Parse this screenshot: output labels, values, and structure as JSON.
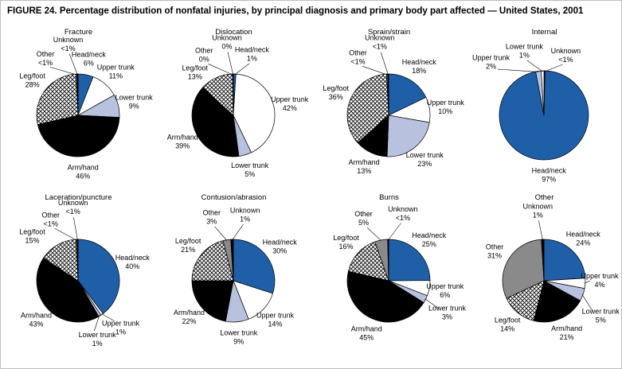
{
  "figure_title": "FIGURE 24. Percentage distribution of nonfatal injuries, by principal diagnosis and primary body part affected — United States, 2001",
  "palette": {
    "head": "#1F5FA8",
    "upper": "#FFFFFF",
    "lower": "#B8C2DE",
    "arm": "#000000",
    "leg": "crosshatch",
    "other": "#8A8A8A",
    "unknown": "#000000"
  },
  "chart_data": [
    {
      "type": "pie",
      "title": "Fracture",
      "slices": [
        {
          "label": "Head/neck",
          "display": "6%",
          "value": 6,
          "fill": "head"
        },
        {
          "label": "Upper trunk",
          "display": "11%",
          "value": 11,
          "fill": "upper"
        },
        {
          "label": "Lower trunk",
          "display": "9%",
          "value": 9,
          "fill": "lower"
        },
        {
          "label": "Arm/hand",
          "display": "46%",
          "value": 46,
          "fill": "arm"
        },
        {
          "label": "Leg/foot",
          "display": "28%",
          "value": 28,
          "fill": "leg"
        },
        {
          "label": "Other",
          "display": "<1%",
          "value": 0.4,
          "fill": "other",
          "la": 330,
          "lr": 82
        },
        {
          "label": "Unknown",
          "display": "<1%",
          "value": 0.4,
          "fill": "unknown",
          "la": 352,
          "lr": 90
        }
      ]
    },
    {
      "type": "pie",
      "title": "Dislocation",
      "slices": [
        {
          "label": "Head/neck",
          "display": "1%",
          "value": 1,
          "fill": "head",
          "la": 17,
          "lr": 80
        },
        {
          "label": "Upper trunk",
          "display": "42%",
          "value": 42,
          "fill": "upper"
        },
        {
          "label": "Lower trunk",
          "display": "5%",
          "value": 5,
          "fill": "lower"
        },
        {
          "label": "Arm/hand",
          "display": "39%",
          "value": 39,
          "fill": "arm"
        },
        {
          "label": "Leg/foot",
          "display": "13%",
          "value": 13,
          "fill": "leg",
          "la": 318
        },
        {
          "label": "Other",
          "display": "0%",
          "value": 0.15,
          "fill": "other",
          "la": 334,
          "lr": 84,
          "leader": true
        },
        {
          "label": "Unknown",
          "display": "0%",
          "value": 0.15,
          "fill": "unknown",
          "la": 355,
          "lr": 92,
          "leader": true
        }
      ]
    },
    {
      "type": "pie",
      "title": "Sprain/strain",
      "slices": [
        {
          "label": "Head/neck",
          "display": "18%",
          "value": 18,
          "fill": "head"
        },
        {
          "label": "Upper trunk",
          "display": "10%",
          "value": 10,
          "fill": "upper"
        },
        {
          "label": "Lower trunk",
          "display": "23%",
          "value": 23,
          "fill": "lower"
        },
        {
          "label": "Arm/hand",
          "display": "13%",
          "value": 13,
          "fill": "arm"
        },
        {
          "label": "Leg/foot",
          "display": "36%",
          "value": 36,
          "fill": "leg"
        },
        {
          "label": "Other",
          "display": "<1%",
          "value": 0.4,
          "fill": "other",
          "la": 332,
          "lr": 82
        },
        {
          "label": "Unknown",
          "display": "<1%",
          "value": 0.4,
          "fill": "unknown",
          "la": 353,
          "lr": 92
        }
      ]
    },
    {
      "type": "pie",
      "title": "Internal",
      "r": 56,
      "slices": [
        {
          "label": "Unknown",
          "display": "<1%",
          "value": 0.4,
          "fill": "unknown",
          "la": 20,
          "lr": 80
        },
        {
          "label": "Head/neck",
          "display": "97%",
          "value": 97,
          "fill": "head"
        },
        {
          "label": "Upper trunk",
          "display": "2%",
          "value": 2,
          "fill": "lower",
          "la": 315,
          "lr": 94
        },
        {
          "label": "Lower trunk",
          "display": "1%",
          "value": 1,
          "fill": "upper",
          "la": 343,
          "lr": 84
        }
      ]
    },
    {
      "type": "pie",
      "title": "Laceration/puncture",
      "slices": [
        {
          "label": "Head/neck",
          "display": "40%",
          "value": 40,
          "fill": "head"
        },
        {
          "label": "Upper trunk",
          "display": "1%",
          "value": 1,
          "fill": "upper",
          "la": 138,
          "lr": 80
        },
        {
          "label": "Lower trunk",
          "display": "1%",
          "value": 1,
          "fill": "lower",
          "la": 162,
          "lr": 78
        },
        {
          "label": "Arm/hand",
          "display": "43%",
          "value": 43,
          "fill": "arm"
        },
        {
          "label": "Leg/foot",
          "display": "15%",
          "value": 15,
          "fill": "leg",
          "la": 314,
          "lr": 80
        },
        {
          "label": "Other",
          "display": "<1%",
          "value": 0.4,
          "fill": "other",
          "la": 336,
          "lr": 84
        },
        {
          "label": "Unknown",
          "display": "<1%",
          "value": 0.4,
          "fill": "unknown",
          "la": 356,
          "lr": 92
        }
      ]
    },
    {
      "type": "pie",
      "title": "Contusion/abrasion",
      "slices": [
        {
          "label": "Head/neck",
          "display": "30%",
          "value": 30,
          "fill": "head"
        },
        {
          "label": "Upper trunk",
          "display": "14%",
          "value": 14,
          "fill": "upper"
        },
        {
          "label": "Lower trunk",
          "display": "9%",
          "value": 9,
          "fill": "lower"
        },
        {
          "label": "Arm/hand",
          "display": "22%",
          "value": 22,
          "fill": "arm"
        },
        {
          "label": "Leg/foot",
          "display": "21%",
          "value": 21,
          "fill": "leg"
        },
        {
          "label": "Other",
          "display": "3%",
          "value": 3,
          "fill": "other",
          "la": 341,
          "lr": 84
        },
        {
          "label": "Unknown",
          "display": "1%",
          "value": 1,
          "fill": "unknown",
          "la": 10,
          "lr": 84
        }
      ]
    },
    {
      "type": "pie",
      "title": "Burns",
      "slices": [
        {
          "label": "Head/neck",
          "display": "25%",
          "value": 25,
          "fill": "head"
        },
        {
          "label": "Upper trunk",
          "display": "6%",
          "value": 6,
          "fill": "upper"
        },
        {
          "label": "Lower trunk",
          "display": "3%",
          "value": 3,
          "fill": "lower",
          "la": 119,
          "lr": 84
        },
        {
          "label": "Arm/hand",
          "display": "45%",
          "value": 45,
          "fill": "arm"
        },
        {
          "label": "Leg/foot",
          "display": "16%",
          "value": 16,
          "fill": "leg"
        },
        {
          "label": "Other",
          "display": "5%",
          "value": 5,
          "fill": "other",
          "la": 338,
          "lr": 84,
          "leader": true
        },
        {
          "label": "Unknown",
          "display": "<1%",
          "value": 0.4,
          "fill": "unknown",
          "la": 12,
          "lr": 86
        }
      ]
    },
    {
      "type": "pie",
      "title": "Other",
      "slices": [
        {
          "label": "Head/neck",
          "display": "24%",
          "value": 24,
          "fill": "head"
        },
        {
          "label": "Upper trunk",
          "display": "4%",
          "value": 4,
          "fill": "upper",
          "la": 90,
          "lr": 70,
          "leader": true
        },
        {
          "label": "Lower trunk",
          "display": "5%",
          "value": 5,
          "fill": "lower",
          "la": 122,
          "lr": 84,
          "leader": true
        },
        {
          "label": "Arm/hand",
          "display": "21%",
          "value": 21,
          "fill": "arm"
        },
        {
          "label": "Leg/foot",
          "display": "14%",
          "value": 14,
          "fill": "leg"
        },
        {
          "label": "Other",
          "display": "31%",
          "value": 31,
          "fill": "other"
        },
        {
          "label": "Unknown",
          "display": "1%",
          "value": 1,
          "fill": "unknown",
          "la": 355,
          "lr": 88
        }
      ]
    }
  ]
}
